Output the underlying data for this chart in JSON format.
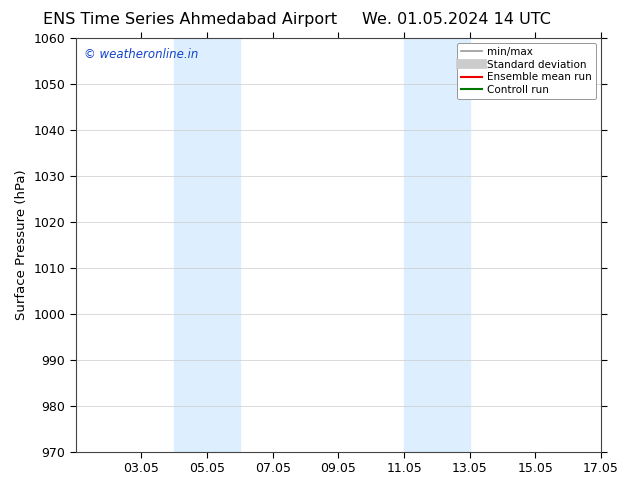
{
  "title_left": "ENS Time Series Ahmedabad Airport",
  "title_right": "We. 01.05.2024 14 UTC",
  "ylabel": "Surface Pressure (hPa)",
  "ylim": [
    970,
    1060
  ],
  "yticks": [
    970,
    980,
    990,
    1000,
    1010,
    1020,
    1030,
    1040,
    1050,
    1060
  ],
  "xlim": [
    1,
    17
  ],
  "xtick_labels": [
    "03.05",
    "05.05",
    "07.05",
    "09.05",
    "11.05",
    "13.05",
    "15.05",
    "17.05"
  ],
  "xtick_positions": [
    3,
    5,
    7,
    9,
    11,
    13,
    15,
    17
  ],
  "shaded_bands": [
    {
      "x_start": 4.0,
      "x_end": 6.0,
      "color": "#ddeeff"
    },
    {
      "x_start": 11.0,
      "x_end": 13.0,
      "color": "#ddeeff"
    }
  ],
  "watermark_text": "© weatheronline.in",
  "watermark_color": "#1144cc",
  "legend_entries": [
    {
      "label": "min/max",
      "color": "#999999",
      "lw": 1.2,
      "style": "solid"
    },
    {
      "label": "Standard deviation",
      "color": "#cccccc",
      "lw": 7,
      "style": "solid"
    },
    {
      "label": "Ensemble mean run",
      "color": "#ee0000",
      "lw": 1.5,
      "style": "solid"
    },
    {
      "label": "Controll run",
      "color": "#007700",
      "lw": 1.5,
      "style": "solid"
    }
  ],
  "bg_color": "#ffffff",
  "grid_color": "#cccccc",
  "title_fontsize": 11.5,
  "axis_label_fontsize": 9.5,
  "tick_fontsize": 9
}
